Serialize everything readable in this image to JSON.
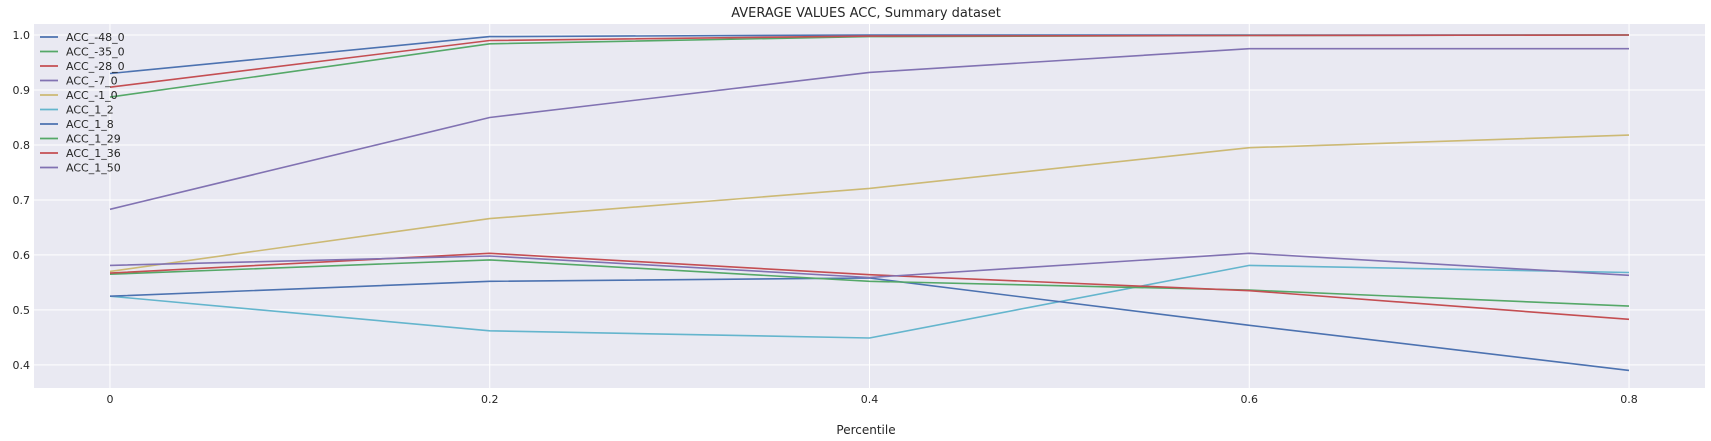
{
  "chart_data": {
    "type": "line",
    "title": "AVERAGE VALUES ACC, Summary dataset",
    "xlabel": "Percentile",
    "ylabel": "",
    "x": [
      0,
      0.2,
      0.4,
      0.6,
      0.8
    ],
    "xticks": [
      "0",
      "0.2",
      "0.4",
      "0.6",
      "0.8"
    ],
    "yticks": [
      "0.4",
      "0.5",
      "0.6",
      "0.7",
      "0.8",
      "0.9",
      "1.0"
    ],
    "xlim": [
      -0.04,
      0.84
    ],
    "ylim": [
      0.358,
      1.02
    ],
    "grid": true,
    "legend_position": "top-left",
    "background": "#e9e9f2",
    "series": [
      {
        "name": "ACC_-48_0",
        "color": "#4c72b0",
        "values": [
          0.93,
          0.997,
          1.0,
          1.0,
          1.0
        ]
      },
      {
        "name": "ACC_-35_0",
        "color": "#55a868",
        "values": [
          0.887,
          0.984,
          0.997,
          0.999,
          1.0
        ]
      },
      {
        "name": "ACC_-28_0",
        "color": "#c44e52",
        "values": [
          0.905,
          0.99,
          0.998,
          0.999,
          1.0
        ]
      },
      {
        "name": "ACC_-7_0",
        "color": "#8172b2",
        "values": [
          0.683,
          0.85,
          0.932,
          0.975,
          0.975
        ]
      },
      {
        "name": "ACC_-1_0",
        "color": "#ccb974",
        "values": [
          0.57,
          0.666,
          0.721,
          0.795,
          0.818
        ]
      },
      {
        "name": "ACC_1_2",
        "color": "#64b5cd",
        "values": [
          0.525,
          0.462,
          0.449,
          0.581,
          0.568
        ]
      },
      {
        "name": "ACC_1_8",
        "color": "#4c72b0",
        "values": [
          0.525,
          0.552,
          0.558,
          0.472,
          0.39
        ]
      },
      {
        "name": "ACC_1_29",
        "color": "#55a868",
        "values": [
          0.565,
          0.591,
          0.552,
          0.536,
          0.507
        ]
      },
      {
        "name": "ACC_1_36",
        "color": "#c44e52",
        "values": [
          0.567,
          0.603,
          0.564,
          0.535,
          0.483
        ]
      },
      {
        "name": "ACC_1_50",
        "color": "#8172b2",
        "values": [
          0.581,
          0.598,
          0.559,
          0.603,
          0.563
        ]
      }
    ]
  }
}
